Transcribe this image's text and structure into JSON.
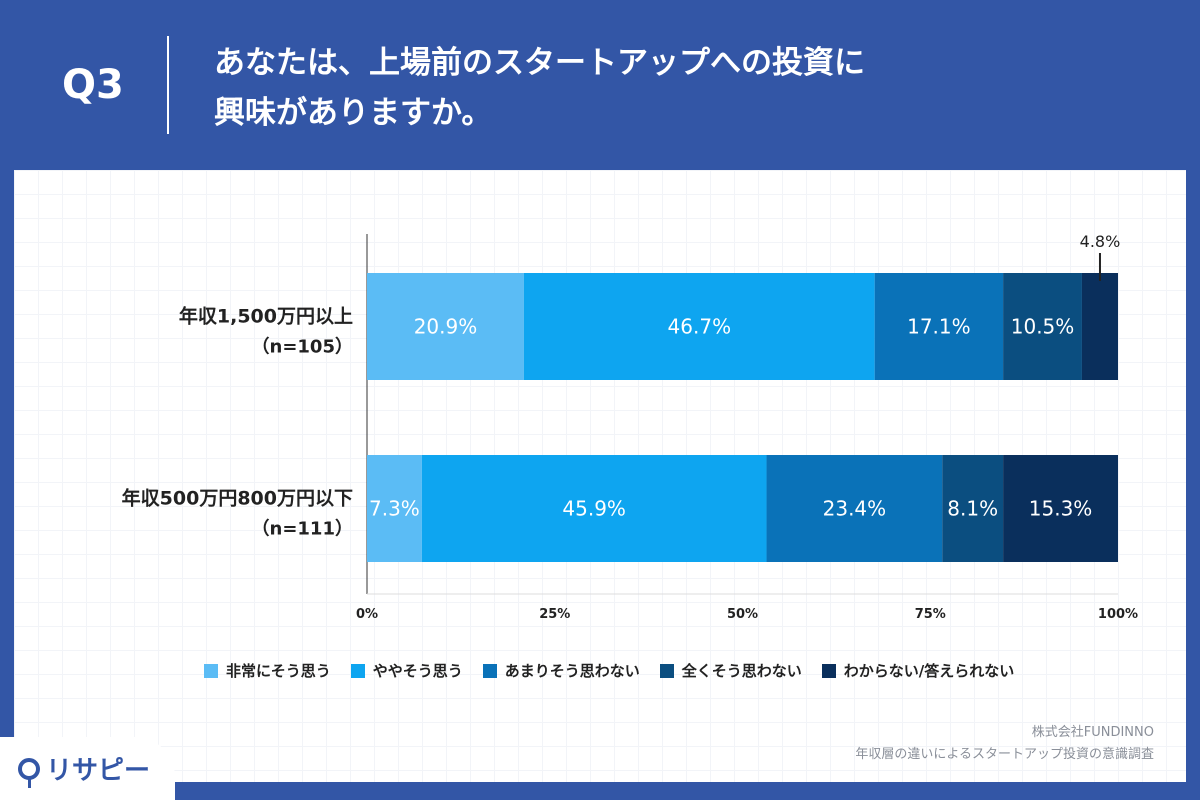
{
  "header": {
    "question_number": "Q3",
    "question_line1": "あなたは、上場前のスタートアップへの投資に",
    "question_line2": "興味がありますか。"
  },
  "chart_data": {
    "type": "bar",
    "orientation": "horizontal",
    "stacked": true,
    "categories": [
      {
        "label": "年収1,500万円以上",
        "n": "（n=105）"
      },
      {
        "label": "年収500万円800万円以下",
        "n": "（n=111）"
      }
    ],
    "series": [
      {
        "name": "非常にそう思う",
        "color": "#5bbcf5",
        "values": [
          20.9,
          7.3
        ]
      },
      {
        "name": "ややそう思う",
        "color": "#0ea5f0",
        "values": [
          46.7,
          45.9
        ]
      },
      {
        "name": "あまりそう思わない",
        "color": "#0a72b8",
        "values": [
          17.1,
          23.4
        ]
      },
      {
        "name": "全くそう思わない",
        "color": "#0b4e80",
        "values": [
          10.5,
          8.1
        ]
      },
      {
        "name": "わからない/答えられない",
        "color": "#0a2f5c",
        "values": [
          4.8,
          15.3
        ]
      }
    ],
    "data_labels": [
      [
        "20.9%",
        "46.7%",
        "17.1%",
        "10.5%",
        "4.8%"
      ],
      [
        "7.3%",
        "45.9%",
        "23.4%",
        "8.1%",
        "15.3%"
      ]
    ],
    "xlim": [
      0,
      100
    ],
    "x_ticks": [
      "0%",
      "25%",
      "50%",
      "75%",
      "100%"
    ],
    "legend_position": "bottom"
  },
  "footer": {
    "company": "株式会社FUNDINNO",
    "survey": "年収層の違いによるスタートアップ投資の意識調査",
    "logo_text": "リサピー"
  }
}
